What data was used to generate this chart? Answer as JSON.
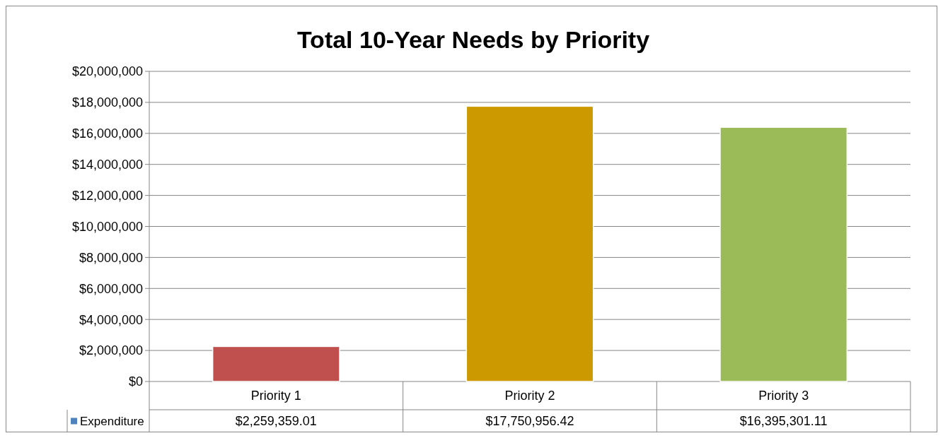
{
  "chart_data": {
    "type": "bar",
    "title": "Total 10-Year Needs by Priority",
    "categories": [
      "Priority 1",
      "Priority 2",
      "Priority 3"
    ],
    "series": [
      {
        "name": "Expenditure",
        "color": "#4f81bd",
        "colors": [
          "#c0504d",
          "#cc9900",
          "#9bbb59"
        ],
        "values": [
          2259359.01,
          17750956.42,
          16395301.11
        ],
        "value_labels": [
          "$2,259,359.01",
          "$17,750,956.42",
          "$16,395,301.11"
        ]
      }
    ],
    "ylim": [
      0,
      20000000
    ],
    "yticks": [
      {
        "value": 0,
        "label": "$0"
      },
      {
        "value": 2000000,
        "label": "$2,000,000"
      },
      {
        "value": 4000000,
        "label": "$4,000,000"
      },
      {
        "value": 6000000,
        "label": "$6,000,000"
      },
      {
        "value": 8000000,
        "label": "$8,000,000"
      },
      {
        "value": 10000000,
        "label": "$10,000,000"
      },
      {
        "value": 12000000,
        "label": "$12,000,000"
      },
      {
        "value": 14000000,
        "label": "$14,000,000"
      },
      {
        "value": 16000000,
        "label": "$16,000,000"
      },
      {
        "value": 18000000,
        "label": "$18,000,000"
      },
      {
        "value": 20000000,
        "label": "$20,000,000"
      }
    ],
    "grid": "y",
    "legend": "bottom"
  }
}
